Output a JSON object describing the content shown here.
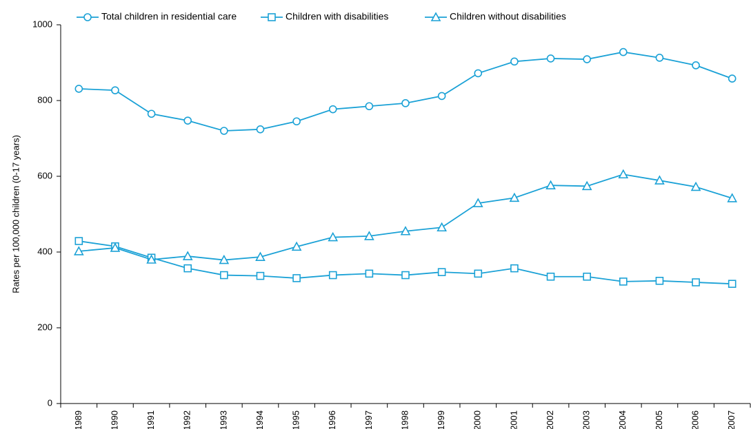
{
  "colors": {
    "series": "#1aa1d6",
    "axis": "#000000"
  },
  "chart_data": {
    "type": "line",
    "title": "",
    "xlabel": "",
    "ylabel": "Rates per 100,000 children (0-17 years)",
    "ylim": [
      0,
      1000
    ],
    "yticks": [
      "0",
      "200",
      "400",
      "600",
      "800",
      "1000"
    ],
    "ytick_values": [
      0,
      200,
      400,
      600,
      800,
      1000
    ],
    "categories": [
      "1989",
      "1990",
      "1991",
      "1992",
      "1993",
      "1994",
      "1995",
      "1996",
      "1997",
      "1998",
      "1999",
      "2000",
      "2001",
      "2002",
      "2003",
      "2004",
      "2005",
      "2006",
      "2007"
    ],
    "legend_position": "top",
    "grid": false,
    "series": [
      {
        "name": "Total children in residential care",
        "marker": "circle",
        "values": [
          831,
          827,
          765,
          747,
          720,
          724,
          745,
          777,
          785,
          793,
          812,
          872,
          903,
          911,
          909,
          928,
          913,
          893,
          858
        ]
      },
      {
        "name": "Children with disabilities",
        "marker": "square",
        "values": [
          429,
          415,
          385,
          357,
          339,
          337,
          331,
          339,
          343,
          339,
          347,
          343,
          357,
          335,
          335,
          322,
          324,
          320,
          316
        ]
      },
      {
        "name": "Children without disabilities",
        "marker": "triangle",
        "values": [
          402,
          411,
          380,
          389,
          379,
          387,
          414,
          439,
          442,
          455,
          465,
          529,
          543,
          576,
          574,
          605,
          589,
          572,
          542
        ]
      }
    ]
  }
}
